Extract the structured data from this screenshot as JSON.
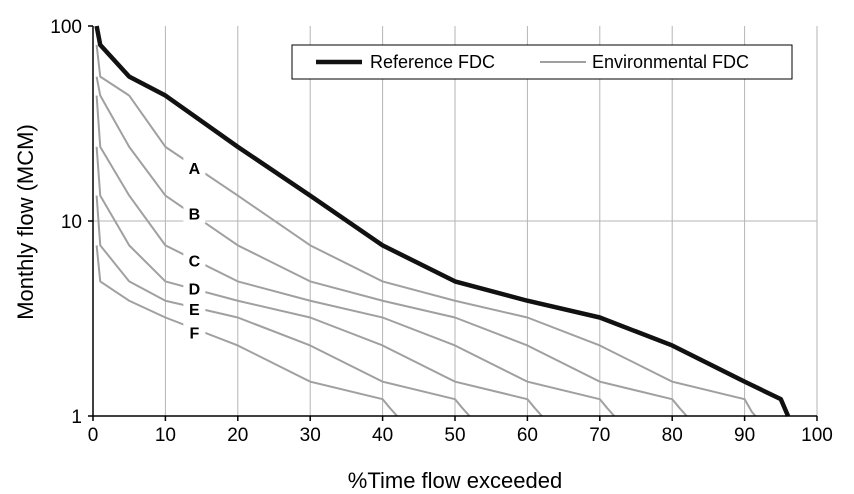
{
  "chart_data": {
    "type": "line",
    "xlabel": "%Time flow exceeded",
    "ylabel": "Monthly flow (MCM)",
    "xlim": [
      0,
      100
    ],
    "ylim": [
      1,
      100
    ],
    "y_scale": "log",
    "x_ticks": [
      "0",
      "10",
      "20",
      "30",
      "40",
      "50",
      "60",
      "70",
      "80",
      "90",
      "100"
    ],
    "y_ticks": [
      {
        "value": 1,
        "label": "1"
      },
      {
        "value": 10,
        "label": "10"
      },
      {
        "value": 100,
        "label": "100"
      }
    ],
    "grid": "vertical",
    "legend_position": "top-right",
    "legend": [
      {
        "label": "Reference FDC",
        "color": "#111111"
      },
      {
        "label": "Environmental FDC",
        "color": "#a0a0a0"
      }
    ],
    "series": [
      {
        "name": "Reference FDC",
        "color": "#111111",
        "x": [
          0.5,
          1,
          5,
          10,
          20,
          30,
          40,
          50,
          60,
          70,
          80,
          90,
          95,
          96
        ],
        "y": [
          100,
          80,
          55,
          44,
          24,
          13.5,
          7.5,
          4.9,
          3.9,
          3.2,
          2.3,
          1.5,
          1.22,
          1.0
        ]
      },
      {
        "name": "A",
        "color": "#a0a0a0",
        "x": [
          0.5,
          1,
          5,
          10,
          20,
          30,
          40,
          50,
          60,
          70,
          80,
          90,
          91,
          91.5
        ],
        "y": [
          80,
          55,
          44,
          24,
          13.5,
          7.5,
          4.9,
          3.9,
          3.2,
          2.3,
          1.5,
          1.22,
          1.05,
          1.0
        ]
      },
      {
        "name": "B",
        "color": "#a0a0a0",
        "x": [
          0.5,
          1,
          5,
          10,
          20,
          30,
          40,
          50,
          60,
          70,
          80,
          81,
          82
        ],
        "y": [
          55,
          44,
          24,
          13.5,
          7.5,
          4.9,
          3.9,
          3.2,
          2.3,
          1.5,
          1.22,
          1.1,
          1.0
        ]
      },
      {
        "name": "C",
        "color": "#a0a0a0",
        "x": [
          0.5,
          1,
          5,
          10,
          20,
          30,
          40,
          50,
          60,
          70,
          71,
          72
        ],
        "y": [
          44,
          24,
          13.5,
          7.5,
          4.9,
          3.9,
          3.2,
          2.3,
          1.5,
          1.22,
          1.1,
          1.0
        ]
      },
      {
        "name": "D",
        "color": "#a0a0a0",
        "x": [
          0.5,
          1,
          5,
          10,
          20,
          30,
          40,
          50,
          60,
          61,
          62
        ],
        "y": [
          24,
          13.5,
          7.5,
          4.9,
          3.9,
          3.2,
          2.3,
          1.5,
          1.22,
          1.1,
          1.0
        ]
      },
      {
        "name": "E",
        "color": "#a0a0a0",
        "x": [
          0.5,
          1,
          5,
          10,
          20,
          30,
          40,
          50,
          51,
          52
        ],
        "y": [
          13.5,
          7.5,
          4.9,
          3.9,
          3.2,
          2.3,
          1.5,
          1.22,
          1.1,
          1.0
        ]
      },
      {
        "name": "F",
        "color": "#a0a0a0",
        "x": [
          0.5,
          1,
          5,
          10,
          20,
          30,
          40,
          41,
          42
        ],
        "y": [
          7.5,
          4.9,
          3.9,
          3.2,
          2.3,
          1.5,
          1.22,
          1.1,
          1.0
        ]
      }
    ],
    "curve_labels": [
      {
        "text": "A",
        "x": 14,
        "y": 18.5
      },
      {
        "text": "B",
        "x": 14,
        "y": 10.8
      },
      {
        "text": "C",
        "x": 14,
        "y": 6.2
      },
      {
        "text": "D",
        "x": 14,
        "y": 4.45
      },
      {
        "text": "E",
        "x": 14,
        "y": 3.5
      },
      {
        "text": "F",
        "x": 14,
        "y": 2.65
      }
    ]
  }
}
